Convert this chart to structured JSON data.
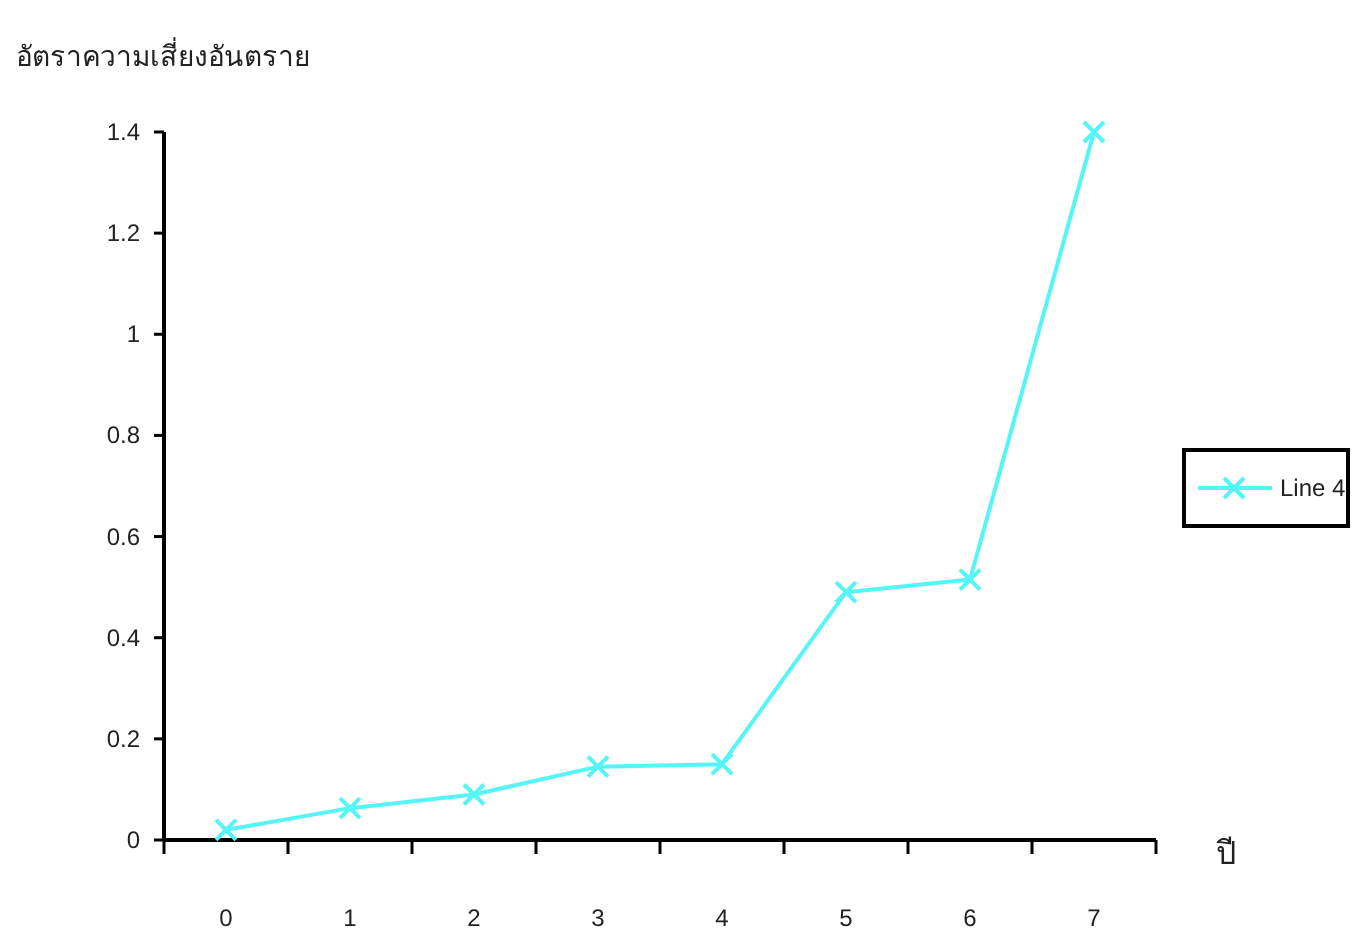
{
  "chart_data": {
    "type": "line",
    "ylabel": "อัตราความเสี่ยงอันตราย",
    "xlabel": "ปี",
    "categories": [
      "0",
      "1",
      "2",
      "3",
      "4",
      "5",
      "6",
      "7"
    ],
    "series": [
      {
        "name": "Line 4",
        "color": "#55f5f5",
        "values": [
          0.02,
          0.063,
          0.09,
          0.145,
          0.15,
          0.49,
          0.515,
          1.4
        ]
      }
    ],
    "ylim": [
      0,
      1.4
    ],
    "yticks": [
      0,
      0.2,
      0.4,
      0.6,
      0.8,
      1,
      1.2,
      1.4
    ],
    "marker": "cross",
    "legend": "right",
    "grid": false
  }
}
